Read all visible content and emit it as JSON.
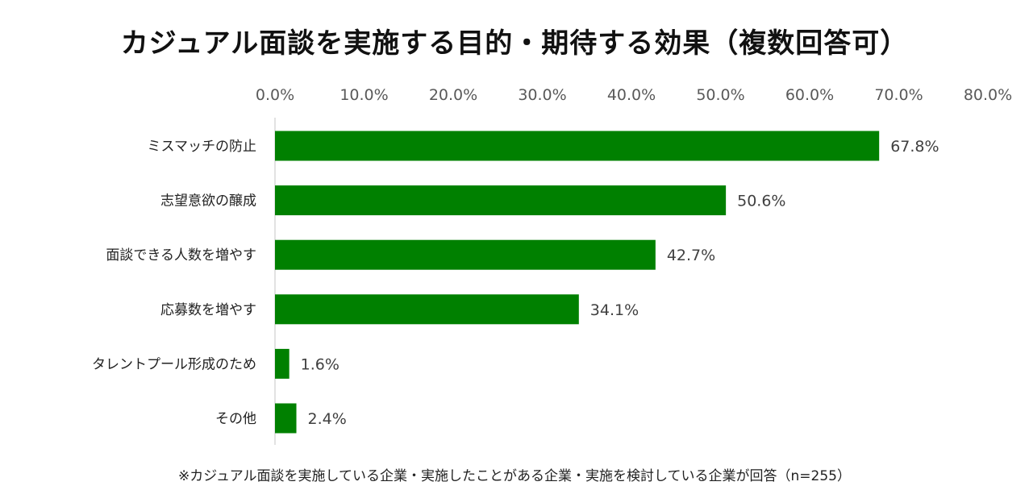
{
  "chart_data": {
    "type": "bar",
    "orientation": "horizontal",
    "title": "カジュアル面談を実施する目的・期待する効果（複数回答可）",
    "categories": [
      "ミスマッチの防止",
      "志望意欲の醸成",
      "面談できる人数を増やす",
      "応募数を増やす",
      "タレントプール形成のため",
      "その他"
    ],
    "values": [
      67.8,
      50.6,
      42.7,
      34.1,
      1.6,
      2.4
    ],
    "data_labels": [
      "67.8%",
      "50.6%",
      "42.7%",
      "34.1%",
      "1.6%",
      "2.4%"
    ],
    "x_ticks": [
      0,
      10,
      20,
      30,
      40,
      50,
      60,
      70,
      80
    ],
    "x_tick_labels": [
      "0.0%",
      "10.0%",
      "20.0%",
      "30.0%",
      "40.0%",
      "50.0%",
      "60.0%",
      "70.0%",
      "80.0%"
    ],
    "xlim": [
      0,
      80
    ],
    "x_axis_position": "top",
    "grid": false,
    "legend": "none",
    "bar_color": "#008000",
    "note": "※カジュアル面談を実施している企業・実施したことがある企業・実施を検討している企業が回答（n=255）"
  }
}
